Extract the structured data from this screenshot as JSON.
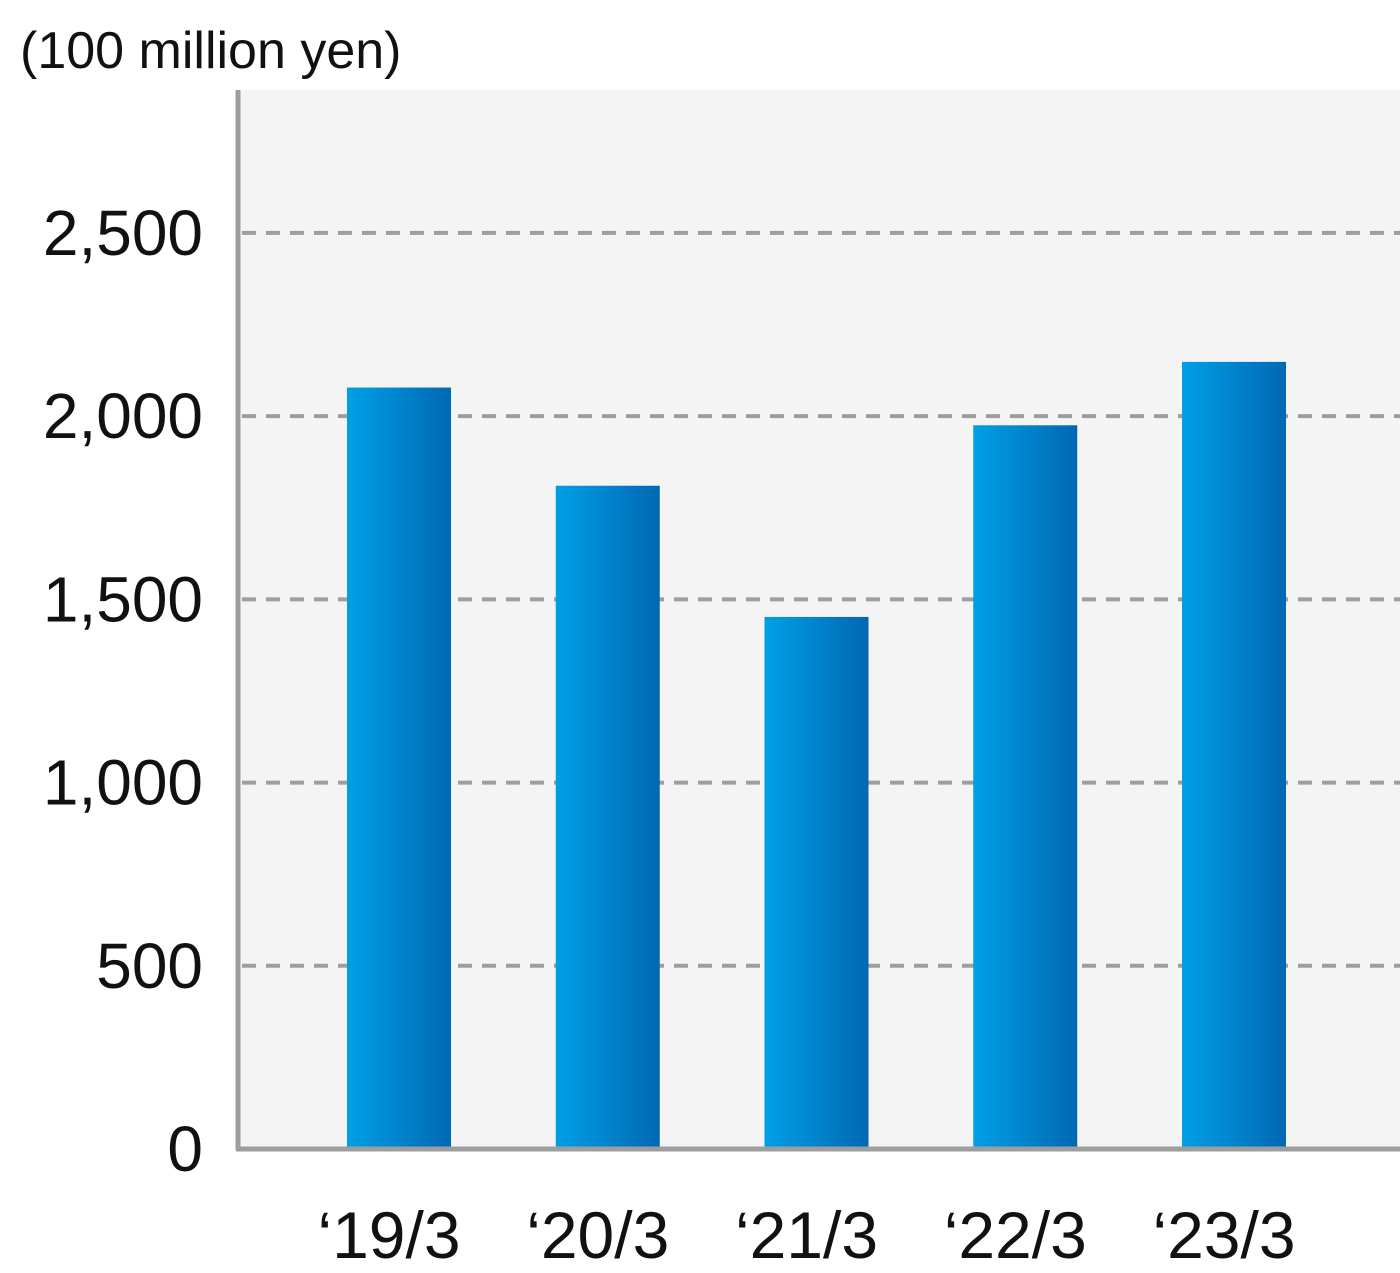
{
  "chart_data": {
    "type": "bar",
    "title": "",
    "unit_label": "(100 million yen)",
    "xlabel": "",
    "ylabel": "",
    "categories": [
      "‘19/3",
      "‘20/3",
      "‘21/3",
      "‘22/3",
      "‘23/3"
    ],
    "values": [
      2078,
      1810,
      1452,
      1975,
      2148
    ],
    "ylim": [
      0,
      2890
    ],
    "yticks": [
      0,
      500,
      1000,
      1500,
      2000,
      2500
    ],
    "ytick_labels": [
      "0",
      "500",
      "1,000",
      "1,500",
      "2,000",
      "2,500"
    ],
    "grid": "horizontal-dashed",
    "legend": "none",
    "colors": {
      "bar_light": "#009fe6",
      "bar_dark": "#0068b3",
      "plot_background": "#f4f4f4",
      "axis": "#9e9e9e",
      "gridline": "#9e9e9e"
    }
  }
}
